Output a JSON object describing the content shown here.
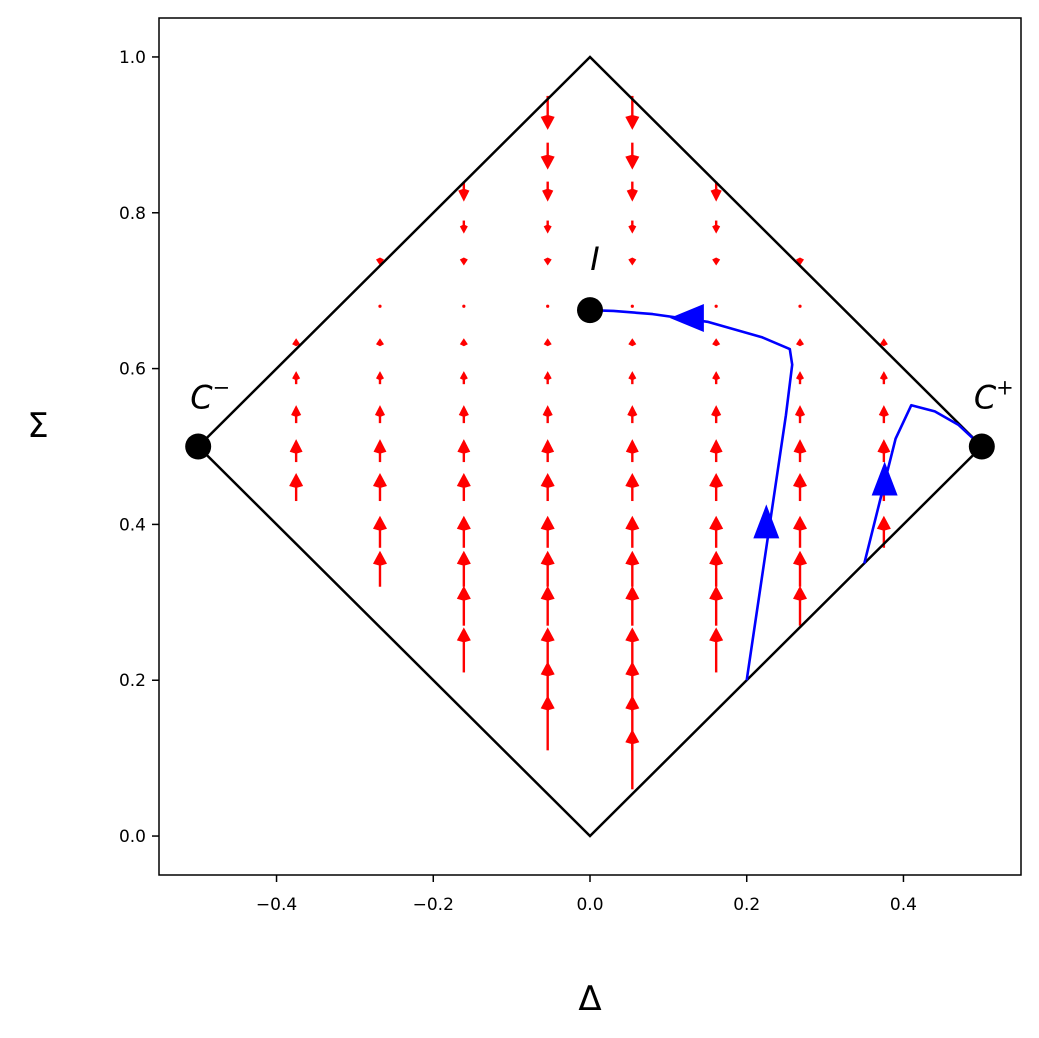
{
  "chart_data": {
    "type": "phase-portrait",
    "xlabel": "Δ",
    "ylabel": "Σ",
    "xlim": [
      -0.55,
      0.55
    ],
    "ylim": [
      -0.05,
      1.05
    ],
    "xticks": [
      -0.4,
      -0.2,
      0.0,
      0.2,
      0.4
    ],
    "xtick_labels": [
      "−0.4",
      "−0.2",
      "0.0",
      "0.2",
      "0.4"
    ],
    "yticks": [
      0.0,
      0.2,
      0.4,
      0.6,
      0.8,
      1.0
    ],
    "ytick_labels": [
      "0.0",
      "0.2",
      "0.4",
      "0.6",
      "0.8",
      "1.0"
    ],
    "grid": false,
    "boundary": [
      [
        0.0,
        0.0
      ],
      [
        0.5,
        0.5
      ],
      [
        0.0,
        1.0
      ],
      [
        -0.5,
        0.5
      ],
      [
        0.0,
        0.0
      ]
    ],
    "fixed_points": [
      {
        "id": "I",
        "label": "I",
        "x": 0.0,
        "y": 0.675
      },
      {
        "id": "C-",
        "label": "C",
        "sup": "−",
        "x": -0.5,
        "y": 0.5
      },
      {
        "id": "C+",
        "label": "C",
        "sup": "+",
        "x": 0.5,
        "y": 0.5
      }
    ],
    "vector_field": {
      "color": "#ff0000",
      "columns": [
        -0.375,
        -0.268,
        -0.161,
        -0.054,
        0.054,
        0.161,
        0.268,
        0.375
      ],
      "column_rows": {
        "-0.375": [
          0.43,
          0.48,
          0.53,
          0.58,
          0.63
        ],
        "-0.268": [
          0.32,
          0.37,
          0.43,
          0.48,
          0.53,
          0.58,
          0.63,
          0.68,
          0.74
        ],
        "-0.161": [
          0.21,
          0.27,
          0.32,
          0.37,
          0.43,
          0.48,
          0.53,
          0.58,
          0.63,
          0.68,
          0.74,
          0.79,
          0.84
        ],
        "-0.054": [
          0.11,
          0.16,
          0.21,
          0.27,
          0.32,
          0.37,
          0.43,
          0.48,
          0.53,
          0.58,
          0.63,
          0.68,
          0.74,
          0.79,
          0.84,
          0.89,
          0.95
        ],
        "0.054": [
          0.06,
          0.11,
          0.16,
          0.21,
          0.27,
          0.32,
          0.37,
          0.43,
          0.48,
          0.53,
          0.58,
          0.63,
          0.68,
          0.74,
          0.79,
          0.84,
          0.89,
          0.95
        ],
        "0.161": [
          0.21,
          0.27,
          0.32,
          0.37,
          0.43,
          0.48,
          0.53,
          0.58,
          0.63,
          0.68,
          0.74,
          0.79,
          0.84
        ],
        "0.268": [
          0.27,
          0.32,
          0.37,
          0.43,
          0.48,
          0.53,
          0.58,
          0.63,
          0.68,
          0.74
        ],
        "0.375": [
          0.37,
          0.43,
          0.48,
          0.53,
          0.58,
          0.63
        ]
      },
      "rows": [
        0.06,
        0.11,
        0.16,
        0.21,
        0.27,
        0.32,
        0.37,
        0.43,
        0.48,
        0.53,
        0.58,
        0.63,
        0.68,
        0.74,
        0.79,
        0.84,
        0.89,
        0.95
      ],
      "dsigma_samples": [
        {
          "y": 0.06,
          "v": 0.06
        },
        {
          "y": 0.11,
          "v": 0.055
        },
        {
          "y": 0.16,
          "v": 0.05
        },
        {
          "y": 0.21,
          "v": 0.045
        },
        {
          "y": 0.27,
          "v": 0.04
        },
        {
          "y": 0.32,
          "v": 0.036
        },
        {
          "y": 0.37,
          "v": 0.032
        },
        {
          "y": 0.43,
          "v": 0.028
        },
        {
          "y": 0.48,
          "v": 0.023
        },
        {
          "y": 0.53,
          "v": 0.018
        },
        {
          "y": 0.58,
          "v": 0.013
        },
        {
          "y": 0.63,
          "v": 0.007
        },
        {
          "y": 0.68,
          "v": 0.0
        },
        {
          "y": 0.74,
          "v": -0.006
        },
        {
          "y": 0.79,
          "v": -0.013
        },
        {
          "y": 0.84,
          "v": -0.02
        },
        {
          "y": 0.89,
          "v": -0.027
        },
        {
          "y": 0.95,
          "v": -0.034
        }
      ]
    },
    "trajectories": [
      {
        "color": "#0000ff",
        "points": [
          [
            0.2,
            0.2
          ],
          [
            0.225,
            0.37
          ],
          [
            0.25,
            0.54
          ],
          [
            0.258,
            0.605
          ],
          [
            0.255,
            0.625
          ],
          [
            0.22,
            0.64
          ],
          [
            0.15,
            0.66
          ],
          [
            0.08,
            0.67
          ],
          [
            0.03,
            0.674
          ],
          [
            0.0,
            0.675
          ]
        ],
        "arrows": [
          {
            "x": 0.225,
            "y": 0.4,
            "dir": "up"
          },
          {
            "x": 0.13,
            "y": 0.665,
            "dir": "left"
          }
        ]
      },
      {
        "color": "#0000ff",
        "points": [
          [
            0.35,
            0.35
          ],
          [
            0.37,
            0.43
          ],
          [
            0.39,
            0.51
          ],
          [
            0.41,
            0.553
          ],
          [
            0.44,
            0.545
          ],
          [
            0.47,
            0.528
          ],
          [
            0.5,
            0.5
          ]
        ],
        "arrows": [
          {
            "x": 0.376,
            "y": 0.455,
            "dir": "up"
          }
        ]
      }
    ]
  }
}
